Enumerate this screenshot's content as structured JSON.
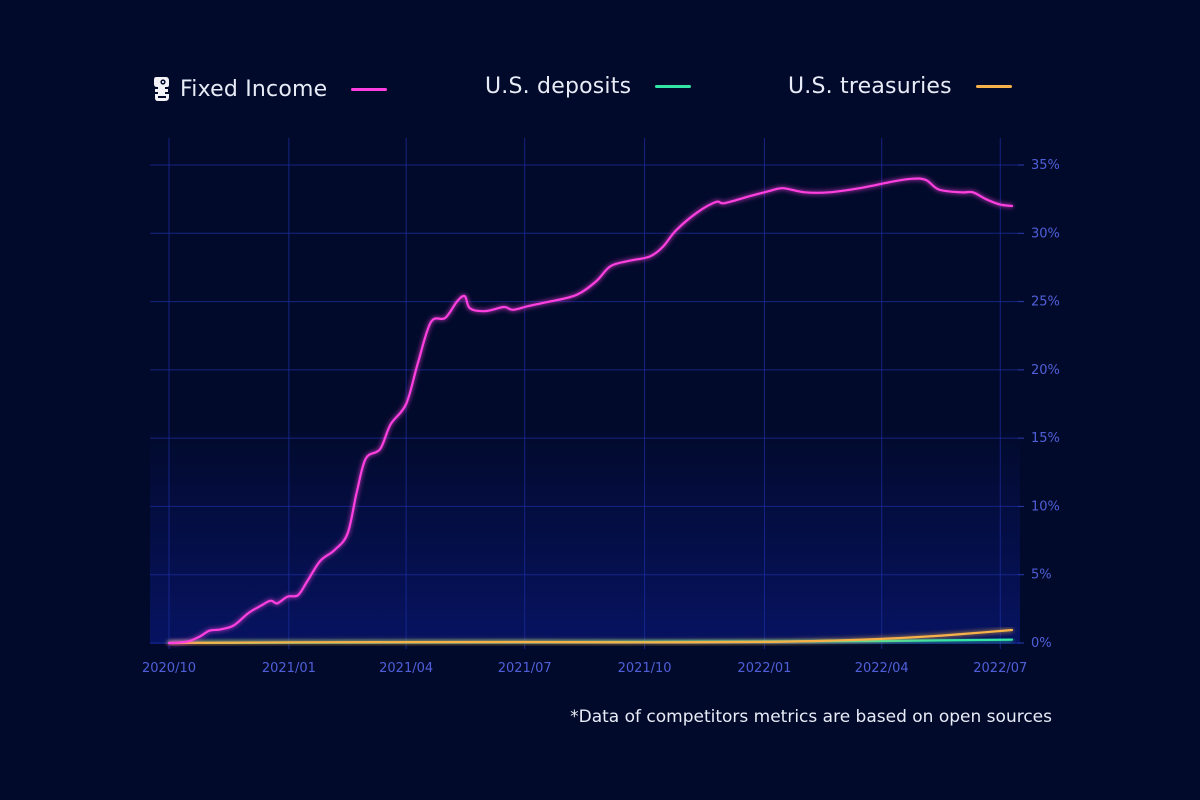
{
  "legend": [
    {
      "label": "Fixed Income",
      "color": "#ff3fe0",
      "icon": "robot-mascot-icon"
    },
    {
      "label": "U.S. deposits",
      "color": "#33e6a6"
    },
    {
      "label": "U.S. treasuries",
      "color": "#f6b14a"
    }
  ],
  "footnote": "*Data of competitors metrics are based on open sources",
  "chart_data": {
    "type": "line",
    "x_ticks": [
      "2020/10",
      "2021/01",
      "2021/04",
      "2021/07",
      "2021/10",
      "2022/01",
      "2022/04",
      "2022/07"
    ],
    "y_ticks": [
      "0%",
      "5%",
      "10%",
      "15%",
      "20%",
      "25%",
      "30%",
      "35%"
    ],
    "ylim": [
      0,
      35
    ],
    "xlim": [
      "2020-10-01",
      "2022-07-10"
    ],
    "y_axis_side": "right",
    "grid": true,
    "legend_position": "top",
    "series": [
      {
        "name": "Fixed Income",
        "color": "#ff3fe0",
        "points": [
          [
            "2020-10-01",
            0
          ],
          [
            "2020-10-15",
            0.1
          ],
          [
            "2020-10-25",
            0.5
          ],
          [
            "2020-11-01",
            0.9
          ],
          [
            "2020-11-10",
            1.0
          ],
          [
            "2020-11-20",
            1.3
          ],
          [
            "2020-12-01",
            2.2
          ],
          [
            "2020-12-10",
            2.7
          ],
          [
            "2020-12-18",
            3.1
          ],
          [
            "2020-12-23",
            2.9
          ],
          [
            "2020-12-31",
            3.4
          ],
          [
            "2021-01-08",
            3.5
          ],
          [
            "2021-01-15",
            4.5
          ],
          [
            "2021-01-25",
            6.0
          ],
          [
            "2021-02-05",
            6.8
          ],
          [
            "2021-02-15",
            8.0
          ],
          [
            "2021-02-22",
            11.0
          ],
          [
            "2021-03-01",
            13.5
          ],
          [
            "2021-03-12",
            14.2
          ],
          [
            "2021-03-20",
            16.0
          ],
          [
            "2021-04-01",
            17.5
          ],
          [
            "2021-04-10",
            20.5
          ],
          [
            "2021-04-20",
            23.5
          ],
          [
            "2021-05-01",
            23.8
          ],
          [
            "2021-05-10",
            25.0
          ],
          [
            "2021-05-16",
            25.4
          ],
          [
            "2021-05-20",
            24.5
          ],
          [
            "2021-06-01",
            24.3
          ],
          [
            "2021-06-15",
            24.6
          ],
          [
            "2021-06-22",
            24.4
          ],
          [
            "2021-07-05",
            24.7
          ],
          [
            "2021-07-20",
            25.0
          ],
          [
            "2021-08-10",
            25.5
          ],
          [
            "2021-08-25",
            26.5
          ],
          [
            "2021-09-05",
            27.6
          ],
          [
            "2021-09-20",
            28.0
          ],
          [
            "2021-10-05",
            28.3
          ],
          [
            "2021-10-15",
            29.0
          ],
          [
            "2021-10-25",
            30.2
          ],
          [
            "2021-11-10",
            31.5
          ],
          [
            "2021-11-25",
            32.3
          ],
          [
            "2021-12-01",
            32.2
          ],
          [
            "2021-12-20",
            32.7
          ],
          [
            "2022-01-05",
            33.1
          ],
          [
            "2022-01-15",
            33.3
          ],
          [
            "2022-02-01",
            33.0
          ],
          [
            "2022-02-20",
            33.0
          ],
          [
            "2022-03-15",
            33.3
          ],
          [
            "2022-04-10",
            33.8
          ],
          [
            "2022-04-25",
            34.0
          ],
          [
            "2022-05-05",
            33.9
          ],
          [
            "2022-05-15",
            33.2
          ],
          [
            "2022-06-01",
            33.0
          ],
          [
            "2022-06-10",
            33.0
          ],
          [
            "2022-06-20",
            32.5
          ],
          [
            "2022-07-01",
            32.1
          ],
          [
            "2022-07-10",
            32.0
          ]
        ]
      },
      {
        "name": "U.S. deposits",
        "color": "#33e6a6",
        "points": [
          [
            "2020-10-01",
            0.0
          ],
          [
            "2021-04-01",
            0.05
          ],
          [
            "2021-10-01",
            0.08
          ],
          [
            "2022-04-01",
            0.15
          ],
          [
            "2022-07-10",
            0.25
          ]
        ]
      },
      {
        "name": "U.S. treasuries",
        "color": "#f6b14a",
        "points": [
          [
            "2020-10-01",
            0.0
          ],
          [
            "2021-01-01",
            0.05
          ],
          [
            "2021-07-01",
            0.07
          ],
          [
            "2021-10-01",
            0.05
          ],
          [
            "2022-01-01",
            0.08
          ],
          [
            "2022-03-01",
            0.2
          ],
          [
            "2022-04-01",
            0.3
          ],
          [
            "2022-05-01",
            0.45
          ],
          [
            "2022-06-01",
            0.65
          ],
          [
            "2022-07-10",
            0.95
          ]
        ]
      }
    ]
  }
}
